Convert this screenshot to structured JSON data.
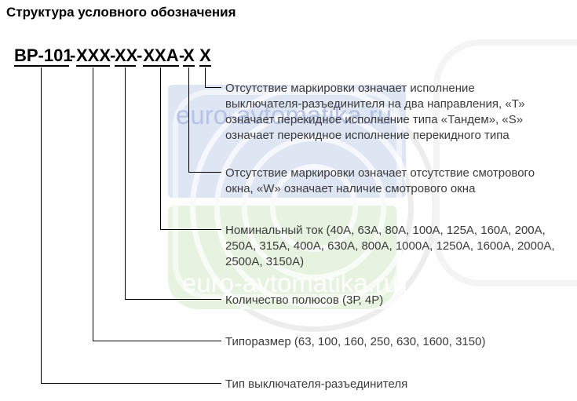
{
  "page": {
    "title": "Структура условного обозначения"
  },
  "code": {
    "parts": [
      "ВР-101",
      "ХХХ",
      "ХХ",
      "ХХА",
      "Х",
      "Х"
    ],
    "separator": "-"
  },
  "labels": {
    "reversing": "Отсутствие маркировки означает исполнение\nвыключателя-разъединителя на два направления, «Т»\nозначает перекидное исполнение типа «Тандем», «S»\nозначает перекидное исполнение перекидного типа",
    "window": "Отсутствие маркировки означает отсутствие смотрового\nокна, «W» означает наличие смотрового окна",
    "rated_current": "Номинальный ток (40А, 63А, 80А, 100А, 125А, 160А, 200А,\n250А, 315А, 400А, 630А, 800А, 1000А, 1250А, 1600А, 2000А,\n2500А, 3150А)",
    "poles": "Количество полюсов (3Р, 4Р)",
    "frame_size": "Типоразмер (63, 100, 160, 250, 630, 1600, 3150)",
    "device_type": "Тип выключателя-разъединителя"
  },
  "watermark": {
    "text": "euro-avtomatika.ru",
    "blue_block_color": "#dee5f3",
    "green_block_color": "#e7f3e0",
    "blue_text_color": "#b7c3e6"
  }
}
